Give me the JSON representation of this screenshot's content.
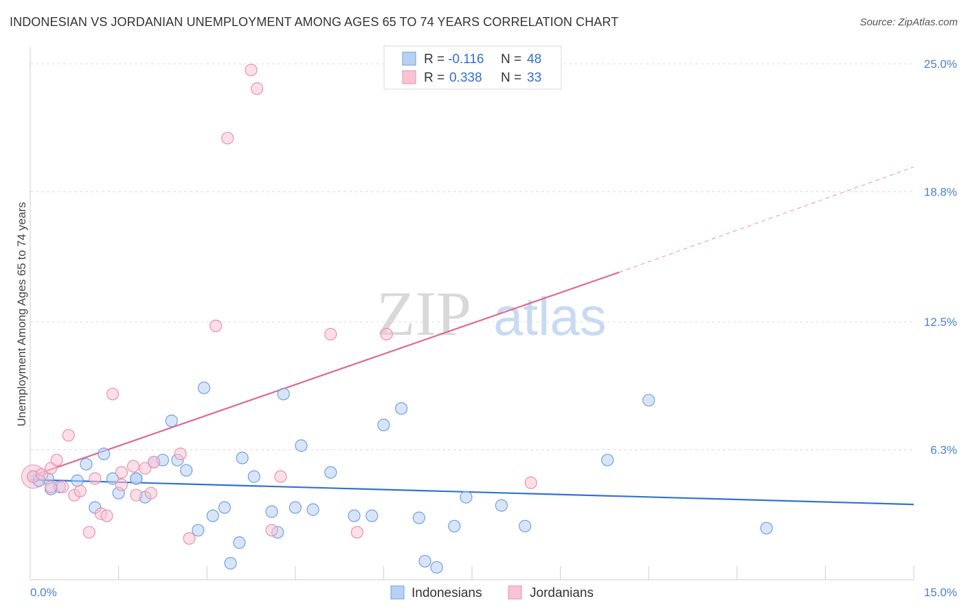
{
  "title": "INDONESIAN VS JORDANIAN UNEMPLOYMENT AMONG AGES 65 TO 74 YEARS CORRELATION CHART",
  "source": "Source: ZipAtlas.com",
  "watermark": {
    "zip": "ZIP",
    "atlas": "atlas"
  },
  "colors": {
    "blue_fill": "#b8d0f4",
    "blue_stroke": "#6f9fe0",
    "blue_line": "#2f72d0",
    "pink_fill": "#f8c4d4",
    "pink_stroke": "#ea8fae",
    "pink_line": "#e06890",
    "grid": "#dddddd",
    "axis_label": "#4a7fd0"
  },
  "legend": {
    "r_label": "R =",
    "n_label": "N =",
    "series": [
      {
        "name": "Indonesians",
        "r": "-0.116",
        "n": "48"
      },
      {
        "name": "Jordanians",
        "r": "0.338",
        "n": "33"
      }
    ]
  },
  "chart_data": {
    "type": "scatter",
    "title": "INDONESIAN VS JORDANIAN UNEMPLOYMENT AMONG AGES 65 TO 74 YEARS CORRELATION CHART",
    "xlabel": "",
    "ylabel": "Unemployment Among Ages 65 to 74 years",
    "xlim": [
      0,
      15
    ],
    "ylim": [
      0,
      25.5
    ],
    "x_tick_labels": [
      {
        "value": 0,
        "label": "0.0%"
      },
      {
        "value": 15,
        "label": "15.0%"
      }
    ],
    "y_tick_labels": [
      {
        "value": 6.3,
        "label": "6.3%"
      },
      {
        "value": 12.5,
        "label": "12.5%"
      },
      {
        "value": 18.8,
        "label": "18.8%"
      },
      {
        "value": 25.0,
        "label": "25.0%"
      }
    ],
    "series": [
      {
        "name": "Indonesians",
        "points": [
          [
            0.05,
            5.0
          ],
          [
            0.3,
            4.9
          ],
          [
            0.35,
            4.4
          ],
          [
            0.5,
            4.5
          ],
          [
            0.8,
            4.8
          ],
          [
            0.95,
            5.6
          ],
          [
            1.1,
            3.5
          ],
          [
            1.25,
            6.1
          ],
          [
            1.4,
            4.9
          ],
          [
            1.5,
            4.2
          ],
          [
            1.8,
            4.9
          ],
          [
            1.95,
            4.0
          ],
          [
            2.1,
            5.7
          ],
          [
            2.25,
            5.8
          ],
          [
            2.4,
            7.7
          ],
          [
            2.5,
            5.8
          ],
          [
            2.65,
            5.3
          ],
          [
            2.85,
            2.4
          ],
          [
            2.95,
            9.3
          ],
          [
            3.1,
            3.1
          ],
          [
            3.3,
            3.5
          ],
          [
            3.4,
            0.8
          ],
          [
            3.55,
            1.8
          ],
          [
            3.6,
            5.9
          ],
          [
            3.8,
            5.0
          ],
          [
            4.1,
            3.3
          ],
          [
            4.2,
            2.3
          ],
          [
            4.3,
            9.0
          ],
          [
            4.5,
            3.5
          ],
          [
            4.6,
            6.5
          ],
          [
            4.8,
            3.4
          ],
          [
            5.1,
            5.2
          ],
          [
            5.5,
            3.1
          ],
          [
            5.8,
            3.1
          ],
          [
            6.0,
            7.5
          ],
          [
            6.3,
            8.3
          ],
          [
            6.6,
            3.0
          ],
          [
            6.7,
            0.9
          ],
          [
            6.9,
            0.6
          ],
          [
            7.2,
            2.6
          ],
          [
            7.4,
            4.0
          ],
          [
            8.0,
            3.6
          ],
          [
            8.4,
            2.6
          ],
          [
            9.8,
            5.8
          ],
          [
            10.5,
            8.7
          ],
          [
            12.5,
            2.5
          ],
          [
            0.15,
            4.8
          ],
          [
            1.8,
            4.9
          ]
        ],
        "trend": {
          "x": [
            0,
            15
          ],
          "y": [
            4.85,
            3.65
          ]
        }
      },
      {
        "name": "Jordanians",
        "points": [
          [
            0.05,
            5.0
          ],
          [
            0.2,
            5.1
          ],
          [
            0.35,
            5.4
          ],
          [
            0.45,
            5.8
          ],
          [
            0.55,
            4.5
          ],
          [
            0.65,
            7.0
          ],
          [
            0.75,
            4.1
          ],
          [
            0.85,
            4.3
          ],
          [
            1.0,
            2.3
          ],
          [
            1.1,
            4.9
          ],
          [
            1.2,
            3.2
          ],
          [
            1.3,
            3.1
          ],
          [
            1.4,
            9.0
          ],
          [
            1.55,
            4.6
          ],
          [
            1.75,
            5.5
          ],
          [
            1.8,
            4.1
          ],
          [
            1.95,
            5.4
          ],
          [
            2.05,
            4.2
          ],
          [
            2.1,
            5.7
          ],
          [
            2.55,
            6.1
          ],
          [
            2.7,
            2.0
          ],
          [
            3.15,
            12.3
          ],
          [
            3.35,
            21.4
          ],
          [
            3.75,
            24.7
          ],
          [
            3.85,
            23.8
          ],
          [
            4.1,
            2.4
          ],
          [
            4.25,
            5.0
          ],
          [
            5.1,
            11.9
          ],
          [
            5.55,
            2.3
          ],
          [
            6.05,
            11.9
          ],
          [
            8.5,
            4.7
          ],
          [
            0.35,
            4.5
          ],
          [
            1.55,
            5.2
          ]
        ],
        "trend": {
          "x": [
            0,
            10.0
          ],
          "y": [
            5.0,
            14.9
          ]
        },
        "trend_extension": {
          "x": [
            10.0,
            15
          ],
          "y": [
            14.9,
            20.0
          ]
        }
      }
    ]
  }
}
